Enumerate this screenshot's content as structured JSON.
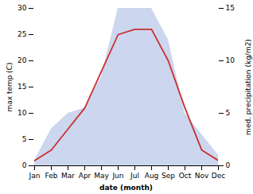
{
  "chart_data": {
    "type": "line",
    "categories": [
      "Jan",
      "Feb",
      "Mar",
      "Apr",
      "May",
      "Jun",
      "Jul",
      "Aug",
      "Sep",
      "Oct",
      "Nov",
      "Dec"
    ],
    "xlabel": "date (month)",
    "ylabel": "max temp (C)",
    "y2label": "med. precipitation (kg/m2)",
    "ylim": [
      0,
      30
    ],
    "yticks": [
      0,
      5,
      10,
      15,
      20,
      25,
      30
    ],
    "y2lim": [
      0,
      15
    ],
    "y2ticks": [
      0,
      5,
      10,
      15
    ],
    "series": [
      {
        "type": "area",
        "axis": "y2",
        "color": "#b8c4e8",
        "values": [
          0.5,
          3.5,
          5,
          5.5,
          8.5,
          15,
          15,
          15,
          12,
          5,
          3,
          1
        ]
      },
      {
        "type": "line",
        "color": "#c83030",
        "values": [
          1,
          3,
          7,
          11,
          18,
          25,
          26,
          26,
          20,
          11,
          3,
          1
        ]
      }
    ]
  }
}
